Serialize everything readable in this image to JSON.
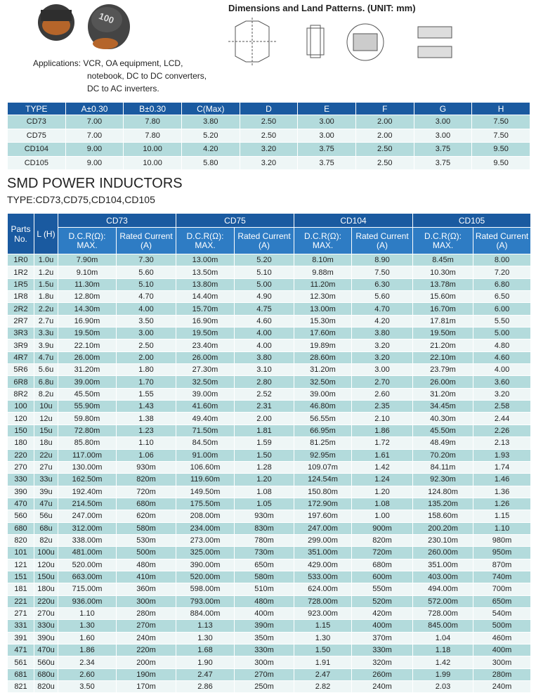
{
  "header": {
    "marking": "100",
    "applications": [
      "Applications: VCR, OA equipment, LCD,",
      "notebook, DC to DC converters,",
      "DC to AC inverters."
    ],
    "dimensions_title": "Dimensions and Land Patterns. (UNIT: mm)"
  },
  "dim_table": {
    "columns": [
      "TYPE",
      "A±0.30",
      "B±0.30",
      "C(Max)",
      "D",
      "E",
      "F",
      "G",
      "H"
    ],
    "rows": [
      [
        "CD73",
        "7.00",
        "7.80",
        "3.80",
        "2.50",
        "3.00",
        "2.00",
        "3.00",
        "7.50"
      ],
      [
        "CD75",
        "7.00",
        "7.80",
        "5.20",
        "2.50",
        "3.00",
        "2.00",
        "3.00",
        "7.50"
      ],
      [
        "CD104",
        "9.00",
        "10.00",
        "4.20",
        "3.20",
        "3.75",
        "2.50",
        "3.75",
        "9.50"
      ],
      [
        "CD105",
        "9.00",
        "10.00",
        "5.80",
        "3.20",
        "3.75",
        "2.50",
        "3.75",
        "9.50"
      ]
    ]
  },
  "title": "SMD POWER INDUCTORS",
  "subtitle": "TYPE:CD73,CD75,CD104,CD105",
  "table": {
    "parts_header": "Parts No.",
    "l_header": "L (H)",
    "groups": [
      "CD73",
      "CD75",
      "CD104",
      "CD105"
    ],
    "dcr_header": "D.C.R(Ω): MAX.",
    "rc_header": "Rated Current (A)",
    "rows": [
      [
        "1R0",
        "1.0u",
        "7.90m",
        "7.30",
        "13.00m",
        "5.20",
        "8.10m",
        "8.90",
        "8.45m",
        "8.00"
      ],
      [
        "1R2",
        "1.2u",
        "9.10m",
        "5.60",
        "13.50m",
        "5.10",
        "9.88m",
        "7.50",
        "10.30m",
        "7.20"
      ],
      [
        "1R5",
        "1.5u",
        "11.30m",
        "5.10",
        "13.80m",
        "5.00",
        "11.20m",
        "6.30",
        "13.78m",
        "6.80"
      ],
      [
        "1R8",
        "1.8u",
        "12.80m",
        "4.70",
        "14.40m",
        "4.90",
        "12.30m",
        "5.60",
        "15.60m",
        "6.50"
      ],
      [
        "2R2",
        "2.2u",
        "14.30m",
        "4.00",
        "15.70m",
        "4.75",
        "13.00m",
        "4.70",
        "16.70m",
        "6.00"
      ],
      [
        "2R7",
        "2.7u",
        "16.90m",
        "3.50",
        "16.90m",
        "4.60",
        "15.30m",
        "4.20",
        "17.81m",
        "5.50"
      ],
      [
        "3R3",
        "3.3u",
        "19.50m",
        "3.00",
        "19.50m",
        "4.00",
        "17.60m",
        "3.80",
        "19.50m",
        "5.00"
      ],
      [
        "3R9",
        "3.9u",
        "22.10m",
        "2.50",
        "23.40m",
        "4.00",
        "19.89m",
        "3.20",
        "21.20m",
        "4.80"
      ],
      [
        "4R7",
        "4.7u",
        "26.00m",
        "2.00",
        "26.00m",
        "3.80",
        "28.60m",
        "3.20",
        "22.10m",
        "4.60"
      ],
      [
        "5R6",
        "5.6u",
        "31.20m",
        "1.80",
        "27.30m",
        "3.10",
        "31.20m",
        "3.00",
        "23.79m",
        "4.00"
      ],
      [
        "6R8",
        "6.8u",
        "39.00m",
        "1.70",
        "32.50m",
        "2.80",
        "32.50m",
        "2.70",
        "26.00m",
        "3.60"
      ],
      [
        "8R2",
        "8.2u",
        "45.50m",
        "1.55",
        "39.00m",
        "2.52",
        "39.00m",
        "2.60",
        "31.20m",
        "3.20"
      ],
      [
        "100",
        "10u",
        "55.90m",
        "1.43",
        "41.60m",
        "2.31",
        "46.80m",
        "2.35",
        "34.45m",
        "2.58"
      ],
      [
        "120",
        "12u",
        "59.80m",
        "1.38",
        "49.40m",
        "2.00",
        "56.55m",
        "2.10",
        "40.30m",
        "2.44"
      ],
      [
        "150",
        "15u",
        "72.80m",
        "1.23",
        "71.50m",
        "1.81",
        "66.95m",
        "1.86",
        "45.50m",
        "2.26"
      ],
      [
        "180",
        "18u",
        "85.80m",
        "1.10",
        "84.50m",
        "1.59",
        "81.25m",
        "1.72",
        "48.49m",
        "2.13"
      ],
      [
        "220",
        "22u",
        "117.00m",
        "1.06",
        "91.00m",
        "1.50",
        "92.95m",
        "1.61",
        "70.20m",
        "1.93"
      ],
      [
        "270",
        "27u",
        "130.00m",
        "930m",
        "106.60m",
        "1.28",
        "109.07m",
        "1.42",
        "84.11m",
        "1.74"
      ],
      [
        "330",
        "33u",
        "162.50m",
        "820m",
        "119.60m",
        "1.20",
        "124.54m",
        "1.24",
        "92.30m",
        "1.46"
      ],
      [
        "390",
        "39u",
        "192.40m",
        "720m",
        "149.50m",
        "1.08",
        "150.80m",
        "1.20",
        "124.80m",
        "1.36"
      ],
      [
        "470",
        "47u",
        "214.50m",
        "680m",
        "175.50m",
        "1.05",
        "172.90m",
        "1.08",
        "135.20m",
        "1.26"
      ],
      [
        "560",
        "56u",
        "247.00m",
        "620m",
        "208.00m",
        "930m",
        "197.60m",
        "1.00",
        "158.60m",
        "1.15"
      ],
      [
        "680",
        "68u",
        "312.00m",
        "580m",
        "234.00m",
        "830m",
        "247.00m",
        "900m",
        "200.20m",
        "1.10"
      ],
      [
        "820",
        "82u",
        "338.00m",
        "530m",
        "273.00m",
        "780m",
        "299.00m",
        "820m",
        "230.10m",
        "980m"
      ],
      [
        "101",
        "100u",
        "481.00m",
        "500m",
        "325.00m",
        "730m",
        "351.00m",
        "720m",
        "260.00m",
        "950m"
      ],
      [
        "121",
        "120u",
        "520.00m",
        "480m",
        "390.00m",
        "650m",
        "429.00m",
        "680m",
        "351.00m",
        "870m"
      ],
      [
        "151",
        "150u",
        "663.00m",
        "410m",
        "520.00m",
        "580m",
        "533.00m",
        "600m",
        "403.00m",
        "740m"
      ],
      [
        "181",
        "180u",
        "715.00m",
        "360m",
        "598.00m",
        "510m",
        "624.00m",
        "550m",
        "494.00m",
        "700m"
      ],
      [
        "221",
        "220u",
        "936.00m",
        "300m",
        "793.00m",
        "480m",
        "728.00m",
        "520m",
        "572.00m",
        "650m"
      ],
      [
        "271",
        "270u",
        "1.10",
        "280m",
        "884.00m",
        "400m",
        "923.00m",
        "420m",
        "728.00m",
        "540m"
      ],
      [
        "331",
        "330u",
        "1.30",
        "270m",
        "1.13",
        "390m",
        "1.15",
        "400m",
        "845.00m",
        "500m"
      ],
      [
        "391",
        "390u",
        "1.60",
        "240m",
        "1.30",
        "350m",
        "1.30",
        "370m",
        "1.04",
        "460m"
      ],
      [
        "471",
        "470u",
        "1.86",
        "220m",
        "1.68",
        "330m",
        "1.50",
        "330m",
        "1.18",
        "400m"
      ],
      [
        "561",
        "560u",
        "2.34",
        "200m",
        "1.90",
        "300m",
        "1.91",
        "320m",
        "1.42",
        "300m"
      ],
      [
        "681",
        "680u",
        "2.60",
        "190m",
        "2.47",
        "270m",
        "2.47",
        "260m",
        "1.99",
        "280m"
      ],
      [
        "821",
        "820u",
        "3.50",
        "170m",
        "2.86",
        "250m",
        "2.82",
        "240m",
        "2.03",
        "240m"
      ]
    ]
  }
}
